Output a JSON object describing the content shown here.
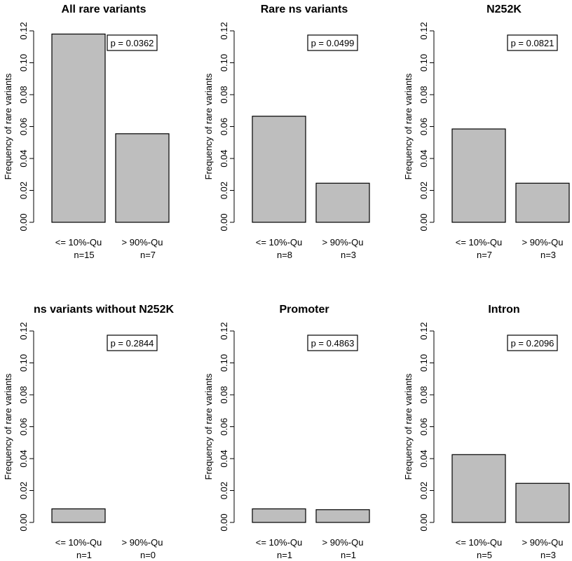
{
  "chart_data": [
    {
      "type": "bar",
      "title": "All rare variants",
      "ylabel": "Frequency of rare variants",
      "ylim": [
        0,
        0.12
      ],
      "yticks": [
        "0.00",
        "0.02",
        "0.04",
        "0.06",
        "0.08",
        "0.10",
        "0.12"
      ],
      "categories": [
        "<= 10%-Qu",
        "> 90%-Qu"
      ],
      "counts": [
        "n=15",
        "n=7"
      ],
      "values": [
        0.118,
        0.0555
      ],
      "annotation": "p = 0.0362"
    },
    {
      "type": "bar",
      "title": "Rare ns variants",
      "ylabel": "Frequency of rare variants",
      "ylim": [
        0,
        0.12
      ],
      "yticks": [
        "0.00",
        "0.02",
        "0.04",
        "0.06",
        "0.08",
        "0.10",
        "0.12"
      ],
      "categories": [
        "<= 10%-Qu",
        "> 90%-Qu"
      ],
      "counts": [
        "n=8",
        "n=3"
      ],
      "values": [
        0.0665,
        0.0245
      ],
      "annotation": "p = 0.0499"
    },
    {
      "type": "bar",
      "title": "N252K",
      "ylabel": "Frequency of rare variants",
      "ylim": [
        0,
        0.12
      ],
      "yticks": [
        "0.00",
        "0.02",
        "0.04",
        "0.06",
        "0.08",
        "0.10",
        "0.12"
      ],
      "categories": [
        "<= 10%-Qu",
        "> 90%-Qu"
      ],
      "counts": [
        "n=7",
        "n=3"
      ],
      "values": [
        0.0585,
        0.0245
      ],
      "annotation": "p = 0.0821"
    },
    {
      "type": "bar",
      "title": "ns variants without N252K",
      "ylabel": "Frequency of rare variants",
      "ylim": [
        0,
        0.12
      ],
      "yticks": [
        "0.00",
        "0.02",
        "0.04",
        "0.06",
        "0.08",
        "0.10",
        "0.12"
      ],
      "categories": [
        "<= 10%-Qu",
        "> 90%-Qu"
      ],
      "counts": [
        "n=1",
        "n=0"
      ],
      "values": [
        0.0085,
        0.0
      ],
      "annotation": "p = 0.2844"
    },
    {
      "type": "bar",
      "title": "Promoter",
      "ylabel": "Frequency of rare variants",
      "ylim": [
        0,
        0.12
      ],
      "yticks": [
        "0.00",
        "0.02",
        "0.04",
        "0.06",
        "0.08",
        "0.10",
        "0.12"
      ],
      "categories": [
        "<= 10%-Qu",
        "> 90%-Qu"
      ],
      "counts": [
        "n=1",
        "n=1"
      ],
      "values": [
        0.0085,
        0.008
      ],
      "annotation": "p = 0.4863"
    },
    {
      "type": "bar",
      "title": "Intron",
      "ylabel": "Frequency of rare variants",
      "ylim": [
        0,
        0.12
      ],
      "yticks": [
        "0.00",
        "0.02",
        "0.04",
        "0.06",
        "0.08",
        "0.10",
        "0.12"
      ],
      "categories": [
        "<= 10%-Qu",
        "> 90%-Qu"
      ],
      "counts": [
        "n=5",
        "n=3"
      ],
      "values": [
        0.0425,
        0.0245
      ],
      "annotation": "p = 0.2096"
    }
  ]
}
